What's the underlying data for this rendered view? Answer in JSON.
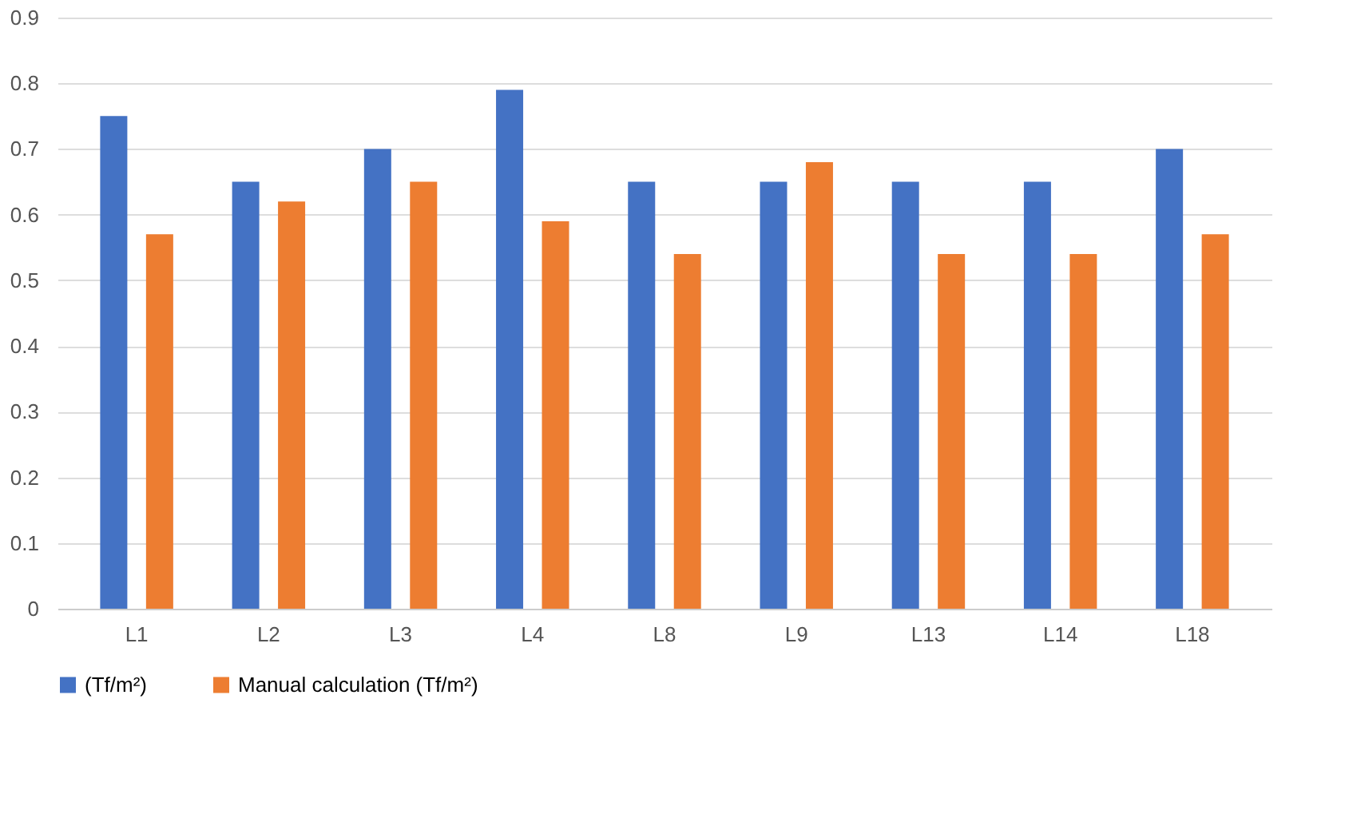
{
  "chart_data": {
    "type": "bar",
    "categories": [
      "L1",
      "L2",
      "L3",
      "L4",
      "L8",
      "L9",
      "L13",
      "L14",
      "L18"
    ],
    "series": [
      {
        "name": "(Tf/m²)",
        "color": "#4472c4",
        "values": [
          0.75,
          0.65,
          0.7,
          0.79,
          0.65,
          0.65,
          0.65,
          0.65,
          0.7
        ]
      },
      {
        "name": "Manual calculation  (Tf/m²)",
        "color": "#ed7d31",
        "values": [
          0.57,
          0.62,
          0.65,
          0.59,
          0.54,
          0.68,
          0.54,
          0.54,
          0.57
        ]
      }
    ],
    "ylim": [
      0,
      0.9
    ],
    "yticks": [
      0,
      0.1,
      0.2,
      0.3,
      0.4,
      0.5,
      0.6,
      0.7,
      0.8,
      0.9
    ],
    "grid": "y",
    "legend": "bottom"
  }
}
